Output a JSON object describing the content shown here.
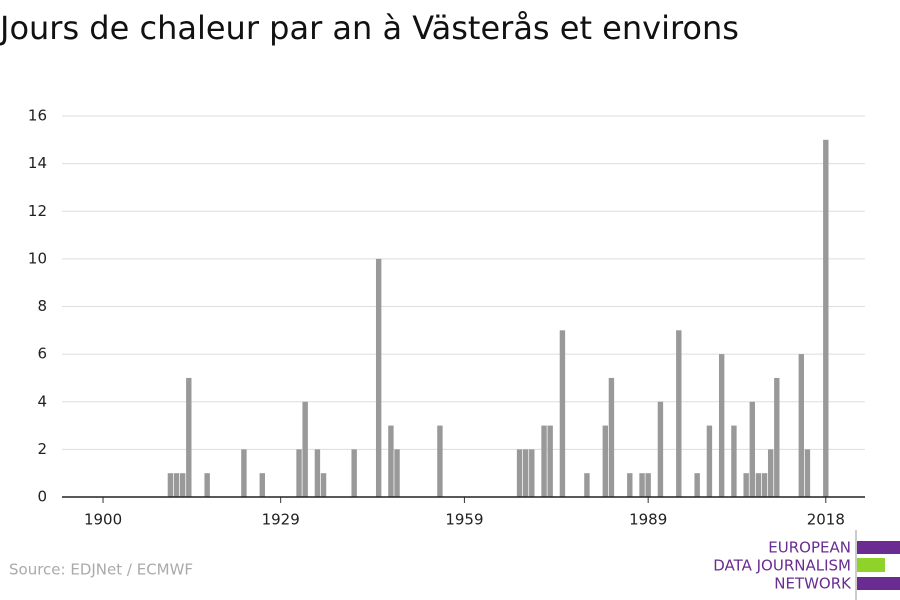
{
  "chart_data": {
    "type": "bar",
    "title": "Jours de chaleur par an à Västerås et environs",
    "source": "Source: EDJNet / ECMWF",
    "logo": [
      "EUROPEAN",
      "DATA JOURNALISM",
      "NETWORK"
    ],
    "color": "#999999",
    "x": [
      1911,
      1912,
      1913,
      1914,
      1917,
      1923,
      1926,
      1932,
      1933,
      1935,
      1936,
      1941,
      1945,
      1947,
      1948,
      1955,
      1968,
      1969,
      1970,
      1972,
      1973,
      1975,
      1979,
      1982,
      1983,
      1986,
      1988,
      1989,
      1991,
      1994,
      1997,
      1999,
      2001,
      2003,
      2005,
      2006,
      2007,
      2008,
      2009,
      2010,
      2014,
      2015,
      2018
    ],
    "values": [
      1,
      1,
      1,
      5,
      1,
      2,
      1,
      2,
      4,
      2,
      1,
      2,
      10,
      3,
      2,
      3,
      2,
      2,
      2,
      3,
      3,
      7,
      1,
      3,
      5,
      1,
      1,
      1,
      4,
      7,
      1,
      3,
      6,
      3,
      1,
      4,
      1,
      1,
      2,
      5,
      6,
      2,
      15
    ],
    "xlim": [
      1893.3,
      2024.4
    ],
    "xticks": [
      1900,
      1929,
      1959,
      1989,
      2018
    ],
    "ylim": [
      0,
      16
    ],
    "yticks": [
      0,
      2,
      4,
      6,
      8,
      10,
      12,
      14,
      16
    ],
    "grid": true
  }
}
